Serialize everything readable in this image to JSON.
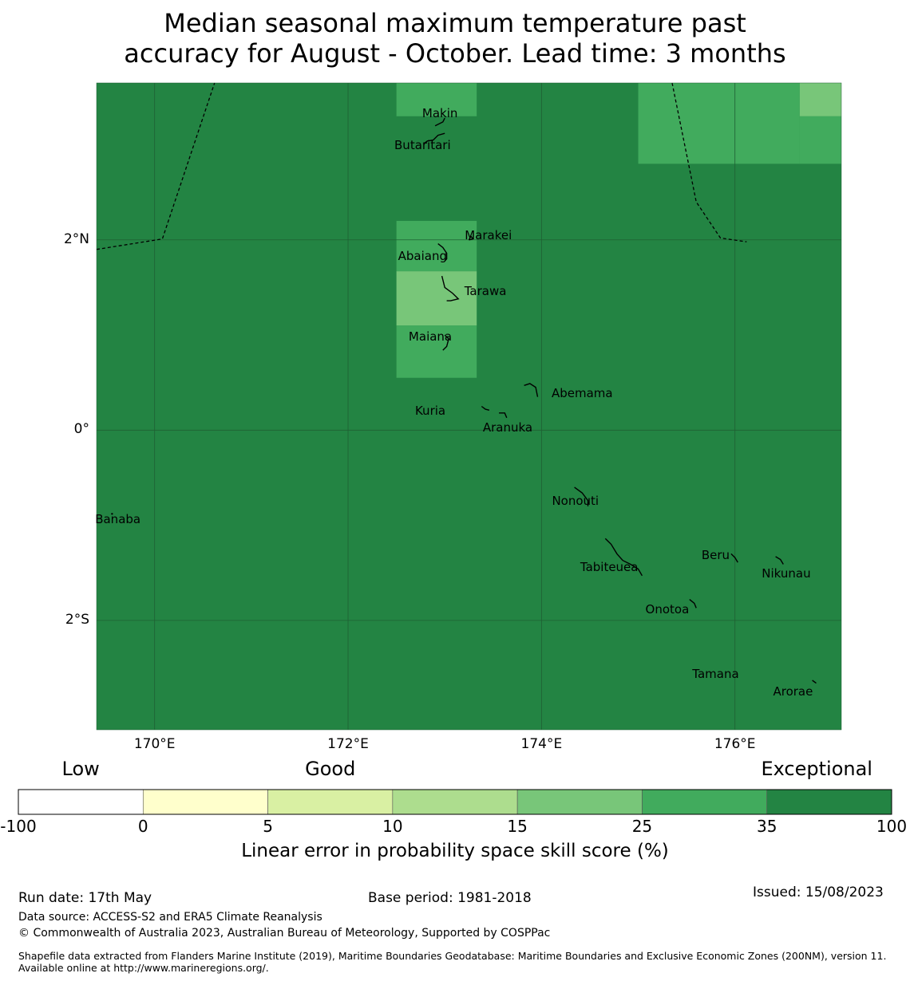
{
  "title": {
    "line1": "Median seasonal maximum temperature past",
    "line2": "accuracy for August - October. Lead time: 3 months"
  },
  "map": {
    "projection": "plate carree",
    "lon_range": [
      169.4,
      177.1
    ],
    "lat_range": [
      -3.15,
      3.65
    ],
    "gridlines": true,
    "lat_ticks": [
      {
        "value": 2,
        "label": "2°N"
      },
      {
        "value": 0,
        "label": "0°"
      },
      {
        "value": -2,
        "label": "2°S"
      }
    ],
    "lon_ticks": [
      {
        "value": 170,
        "label": "170°E"
      },
      {
        "value": 172,
        "label": "172°E"
      },
      {
        "value": 174,
        "label": "174°E"
      },
      {
        "value": 176,
        "label": "176°E"
      }
    ],
    "background_category": "35 to 100",
    "skill_cells": [
      {
        "lon": [
          172.5,
          173.33
        ],
        "lat": [
          3.3,
          3.65
        ],
        "category": "25 to 35"
      },
      {
        "lon": [
          175.0,
          176.0
        ],
        "lat": [
          2.8,
          3.65
        ],
        "category": "25 to 35"
      },
      {
        "lon": [
          176.0,
          176.67
        ],
        "lat": [
          2.8,
          3.65
        ],
        "category": "25 to 35"
      },
      {
        "lon": [
          176.67,
          177.1
        ],
        "lat": [
          2.8,
          3.3
        ],
        "category": "25 to 35"
      },
      {
        "lon": [
          176.67,
          177.1
        ],
        "lat": [
          3.3,
          3.65
        ],
        "category": "15 to 25"
      },
      {
        "lon": [
          172.5,
          173.33
        ],
        "lat": [
          1.67,
          2.2
        ],
        "category": "25 to 35"
      },
      {
        "lon": [
          172.5,
          173.33
        ],
        "lat": [
          1.1,
          1.67
        ],
        "category": "15 to 25"
      },
      {
        "lon": [
          172.5,
          173.33
        ],
        "lat": [
          0.55,
          1.1
        ],
        "category": "25 to 35"
      }
    ],
    "places": [
      {
        "name": "Makin",
        "lon": 172.95,
        "lat": 3.33
      },
      {
        "name": "Butaritari",
        "lon": 172.77,
        "lat": 3.0
      },
      {
        "name": "Marakei",
        "lon": 173.45,
        "lat": 2.05
      },
      {
        "name": "Abaiang",
        "lon": 172.77,
        "lat": 1.83
      },
      {
        "name": "Tarawa",
        "lon": 173.42,
        "lat": 1.46
      },
      {
        "name": "Maiana",
        "lon": 172.85,
        "lat": 0.98
      },
      {
        "name": "Abemama",
        "lon": 174.42,
        "lat": 0.39
      },
      {
        "name": "Kuria",
        "lon": 172.85,
        "lat": 0.2
      },
      {
        "name": "Aranuka",
        "lon": 173.65,
        "lat": 0.03
      },
      {
        "name": "Nonouti",
        "lon": 174.35,
        "lat": -0.74
      },
      {
        "name": "Banaba",
        "lon": 169.62,
        "lat": -0.94
      },
      {
        "name": "Beru",
        "lon": 175.8,
        "lat": -1.31
      },
      {
        "name": "Tabiteuea",
        "lon": 174.7,
        "lat": -1.44
      },
      {
        "name": "Nikunau",
        "lon": 176.53,
        "lat": -1.51
      },
      {
        "name": "Onotoa",
        "lon": 175.3,
        "lat": -1.88
      },
      {
        "name": "Tamana",
        "lon": 175.8,
        "lat": -2.56
      },
      {
        "name": "Arorae",
        "lon": 176.6,
        "lat": -2.75
      }
    ],
    "islands": [
      {
        "name": "makin",
        "path": [
          [
            172.9,
            3.2
          ],
          [
            172.98,
            3.24
          ],
          [
            173.0,
            3.28
          ]
        ]
      },
      {
        "name": "butaritari",
        "path": [
          [
            172.78,
            3.01
          ],
          [
            172.82,
            3.04
          ],
          [
            172.88,
            3.05
          ],
          [
            172.93,
            3.1
          ],
          [
            173.0,
            3.12
          ]
        ]
      },
      {
        "name": "marakei",
        "path": [
          [
            173.25,
            2.0
          ],
          [
            173.27,
            2.04
          ],
          [
            173.29,
            2.01
          ],
          [
            173.25,
            2.0
          ]
        ]
      },
      {
        "name": "abaiang",
        "path": [
          [
            172.93,
            1.96
          ],
          [
            172.98,
            1.92
          ],
          [
            173.02,
            1.86
          ],
          [
            173.02,
            1.8
          ],
          [
            173.0,
            1.78
          ]
        ]
      },
      {
        "name": "tarawa",
        "path": [
          [
            172.97,
            1.62
          ],
          [
            173.0,
            1.5
          ],
          [
            173.08,
            1.44
          ],
          [
            173.14,
            1.38
          ],
          [
            173.06,
            1.36
          ],
          [
            173.02,
            1.36
          ]
        ]
      },
      {
        "name": "maiana",
        "path": [
          [
            173.0,
            1.0
          ],
          [
            173.04,
            0.96
          ],
          [
            173.02,
            0.88
          ],
          [
            172.98,
            0.84
          ]
        ]
      },
      {
        "name": "abemama",
        "path": [
          [
            173.82,
            0.47
          ],
          [
            173.88,
            0.49
          ],
          [
            173.94,
            0.45
          ],
          [
            173.96,
            0.35
          ]
        ]
      },
      {
        "name": "kuria",
        "path": [
          [
            173.38,
            0.25
          ],
          [
            173.42,
            0.22
          ],
          [
            173.46,
            0.21
          ]
        ]
      },
      {
        "name": "aranuka",
        "path": [
          [
            173.56,
            0.18
          ],
          [
            173.62,
            0.18
          ],
          [
            173.64,
            0.13
          ]
        ]
      },
      {
        "name": "nonouti",
        "path": [
          [
            174.34,
            -0.6
          ],
          [
            174.42,
            -0.66
          ],
          [
            174.48,
            -0.74
          ],
          [
            174.48,
            -0.8
          ]
        ]
      },
      {
        "name": "tabiteuea",
        "path": [
          [
            174.66,
            -1.14
          ],
          [
            174.72,
            -1.2
          ],
          [
            174.78,
            -1.3
          ],
          [
            174.84,
            -1.37
          ],
          [
            174.92,
            -1.41
          ],
          [
            175.0,
            -1.46
          ],
          [
            175.04,
            -1.53
          ]
        ]
      },
      {
        "name": "beru",
        "path": [
          [
            175.96,
            -1.3
          ],
          [
            176.0,
            -1.34
          ],
          [
            176.03,
            -1.39
          ]
        ]
      },
      {
        "name": "nikunau",
        "path": [
          [
            176.42,
            -1.33
          ],
          [
            176.47,
            -1.36
          ],
          [
            176.5,
            -1.41
          ]
        ]
      },
      {
        "name": "onotoa",
        "path": [
          [
            175.53,
            -1.78
          ],
          [
            175.58,
            -1.82
          ],
          [
            175.6,
            -1.87
          ]
        ]
      },
      {
        "name": "arorae",
        "path": [
          [
            176.8,
            -2.63
          ],
          [
            176.84,
            -2.66
          ]
        ]
      }
    ],
    "boundaries": [
      [
        [
          169.4,
          1.9
        ],
        [
          170.08,
          2.01
        ],
        [
          170.62,
          3.65
        ]
      ],
      [
        [
          175.35,
          3.65
        ],
        [
          175.6,
          2.4
        ],
        [
          175.85,
          2.02
        ],
        [
          176.12,
          1.98
        ]
      ]
    ]
  },
  "colorbar": {
    "category_labels": [
      {
        "text": "Low",
        "at": 0.5
      },
      {
        "text": "Good",
        "at": 2.5
      },
      {
        "text": "Exceptional",
        "at": 6.4
      }
    ],
    "bins": [
      {
        "from": -100,
        "to": 0,
        "color": "#ffffff"
      },
      {
        "from": 0,
        "to": 5,
        "color": "#ffffcc"
      },
      {
        "from": 5,
        "to": 10,
        "color": "#d9f0a3"
      },
      {
        "from": 10,
        "to": 15,
        "color": "#addd8e"
      },
      {
        "from": 15,
        "to": 25,
        "color": "#78c679"
      },
      {
        "from": 25,
        "to": 35,
        "color": "#41ab5d"
      },
      {
        "from": 35,
        "to": 100,
        "color": "#238443"
      }
    ],
    "ticks": [
      "-100",
      "0",
      "5",
      "10",
      "15",
      "25",
      "35",
      "100"
    ],
    "label": "Linear error in probability space skill score (%)"
  },
  "footer": {
    "run_date": "Run date: 17th May",
    "base_period": "Base period: 1981-2018",
    "issued": "Issued: 15/08/2023",
    "data_source": "Data source: ACCESS-S2 and ERA5 Climate Reanalysis",
    "copyright": "© Commonwealth of Australia 2023, Australian Bureau of Meteorology, Supported by COSPPac",
    "shapefile": "Shapefile data extracted from Flanders Marine Institute (2019), Maritime Boundaries Geodatabase: Maritime Boundaries and Exclusive Economic Zones (200NM), version 11. Available online at http://www.marineregions.org/."
  }
}
